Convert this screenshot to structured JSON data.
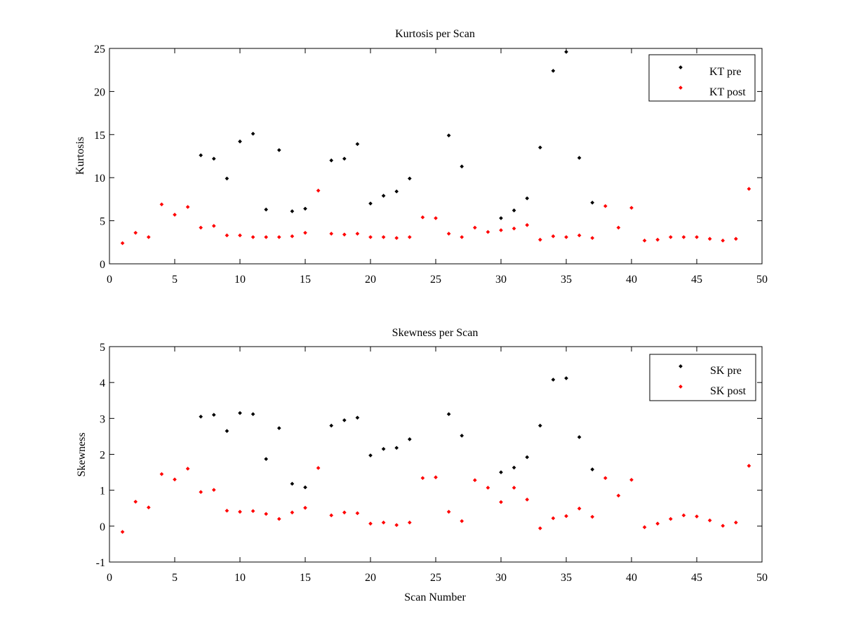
{
  "chart_data": [
    {
      "type": "scatter",
      "title": "Kurtosis per Scan",
      "xlabel": "",
      "ylabel": "Kurtosis",
      "xlim": [
        0,
        50
      ],
      "ylim": [
        0,
        25
      ],
      "xticks": [
        0,
        5,
        10,
        15,
        20,
        25,
        30,
        35,
        40,
        45,
        50
      ],
      "yticks": [
        0,
        5,
        10,
        15,
        20,
        25
      ],
      "legend_position": "top-right",
      "series": [
        {
          "name": "KT pre",
          "color": "#000000",
          "x": [
            7,
            8,
            9,
            10,
            11,
            12,
            13,
            14,
            15,
            17,
            18,
            19,
            20,
            21,
            22,
            23,
            26,
            27,
            30,
            31,
            32,
            33,
            34,
            35,
            36,
            37
          ],
          "y": [
            12.6,
            12.2,
            9.9,
            14.2,
            15.1,
            6.3,
            13.2,
            6.1,
            6.4,
            12.0,
            12.2,
            13.9,
            7.0,
            7.9,
            8.4,
            9.9,
            14.9,
            11.3,
            5.3,
            6.2,
            7.6,
            13.5,
            22.4,
            24.6,
            12.3,
            7.1
          ]
        },
        {
          "name": "KT post",
          "color": "#ff0000",
          "x": [
            1,
            2,
            3,
            4,
            5,
            6,
            7,
            8,
            9,
            10,
            11,
            12,
            13,
            14,
            15,
            16,
            17,
            18,
            19,
            20,
            21,
            22,
            23,
            24,
            25,
            26,
            27,
            28,
            29,
            30,
            31,
            32,
            33,
            34,
            35,
            36,
            37,
            38,
            39,
            40,
            41,
            42,
            43,
            44,
            45,
            46,
            47,
            48,
            49
          ],
          "y": [
            2.4,
            3.6,
            3.1,
            6.9,
            5.7,
            6.6,
            4.2,
            4.4,
            3.3,
            3.3,
            3.1,
            3.1,
            3.1,
            3.2,
            3.6,
            8.5,
            3.5,
            3.4,
            3.5,
            3.1,
            3.1,
            3.0,
            3.1,
            5.4,
            5.3,
            3.5,
            3.1,
            4.2,
            3.7,
            3.9,
            4.1,
            4.5,
            2.8,
            3.2,
            3.1,
            3.3,
            3.0,
            6.7,
            4.2,
            6.5,
            2.7,
            2.8,
            3.1,
            3.1,
            3.1,
            2.9,
            2.7,
            2.9,
            8.7
          ]
        }
      ]
    },
    {
      "type": "scatter",
      "title": "Skewness per Scan",
      "xlabel": "Scan Number",
      "ylabel": "Skewness",
      "xlim": [
        0,
        50
      ],
      "ylim": [
        -1,
        5
      ],
      "xticks": [
        0,
        5,
        10,
        15,
        20,
        25,
        30,
        35,
        40,
        45,
        50
      ],
      "yticks": [
        -1,
        0,
        1,
        2,
        3,
        4,
        5
      ],
      "legend_position": "top-right",
      "series": [
        {
          "name": "SK pre",
          "color": "#000000",
          "x": [
            7,
            8,
            9,
            10,
            11,
            12,
            13,
            14,
            15,
            17,
            18,
            19,
            20,
            21,
            22,
            23,
            26,
            27,
            30,
            31,
            32,
            33,
            34,
            35,
            36,
            37
          ],
          "y": [
            3.05,
            3.1,
            2.65,
            3.15,
            3.12,
            1.87,
            2.73,
            1.18,
            1.08,
            2.8,
            2.95,
            3.02,
            1.97,
            2.15,
            2.18,
            2.42,
            3.12,
            2.52,
            1.5,
            1.63,
            1.92,
            2.8,
            4.08,
            4.12,
            2.48,
            1.58
          ]
        },
        {
          "name": "SK post",
          "color": "#ff0000",
          "x": [
            1,
            2,
            3,
            4,
            5,
            6,
            7,
            8,
            9,
            10,
            11,
            12,
            13,
            14,
            15,
            16,
            17,
            18,
            19,
            20,
            21,
            22,
            23,
            24,
            25,
            26,
            27,
            28,
            29,
            30,
            31,
            32,
            33,
            34,
            35,
            36,
            37,
            38,
            39,
            40,
            41,
            42,
            43,
            44,
            45,
            46,
            47,
            48,
            49
          ],
          "y": [
            -0.16,
            0.68,
            0.52,
            1.45,
            1.3,
            1.6,
            0.95,
            1.01,
            0.43,
            0.4,
            0.42,
            0.34,
            0.2,
            0.38,
            0.51,
            1.62,
            0.3,
            0.38,
            0.36,
            0.07,
            0.1,
            0.03,
            0.1,
            1.34,
            1.36,
            0.4,
            0.14,
            1.28,
            1.07,
            0.67,
            1.07,
            0.74,
            -0.06,
            0.22,
            0.28,
            0.49,
            0.26,
            1.34,
            0.85,
            1.29,
            -0.03,
            0.07,
            0.2,
            0.3,
            0.27,
            0.16,
            0.01,
            0.1,
            1.68
          ]
        }
      ]
    }
  ]
}
